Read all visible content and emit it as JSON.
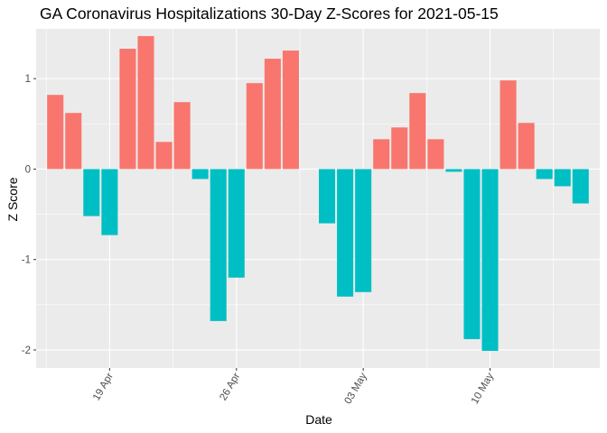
{
  "chart_data": {
    "type": "bar",
    "title": "GA Coronavirus Hospitalizations 30-Day Z-Scores for 2021-05-15",
    "xlabel": "Date",
    "ylabel": "Z Score",
    "ylim": [
      -2.2,
      1.55
    ],
    "yticks": [
      -2,
      -1,
      0,
      1
    ],
    "xticks": [
      {
        "date": "2021-04-19",
        "label": "19 Apr"
      },
      {
        "date": "2021-04-26",
        "label": "26 Apr"
      },
      {
        "date": "2021-05-03",
        "label": "03 May"
      },
      {
        "date": "2021-05-10",
        "label": "10 May"
      }
    ],
    "grid": true,
    "legend": "none",
    "colors": {
      "positive": "#F8766D",
      "negative": "#00BFC4",
      "panel": "#EBEBEB",
      "grid": "#FFFFFF"
    },
    "x": [
      "2021-04-16",
      "2021-04-17",
      "2021-04-18",
      "2021-04-19",
      "2021-04-20",
      "2021-04-21",
      "2021-04-22",
      "2021-04-23",
      "2021-04-24",
      "2021-04-25",
      "2021-04-26",
      "2021-04-27",
      "2021-04-28",
      "2021-04-29",
      "2021-04-30",
      "2021-05-01",
      "2021-05-02",
      "2021-05-03",
      "2021-05-04",
      "2021-05-05",
      "2021-05-06",
      "2021-05-07",
      "2021-05-08",
      "2021-05-09",
      "2021-05-10",
      "2021-05-11",
      "2021-05-12",
      "2021-05-13",
      "2021-05-14",
      "2021-05-15"
    ],
    "values": [
      0.82,
      0.62,
      -0.52,
      -0.73,
      1.33,
      1.47,
      0.3,
      0.74,
      -0.11,
      -1.68,
      -1.2,
      0.95,
      1.22,
      1.31,
      0,
      -0.6,
      -1.41,
      -1.36,
      0.33,
      0.46,
      0.84,
      0.33,
      -0.03,
      -1.88,
      -2.01,
      0.98,
      0.51,
      -0.11,
      -0.19,
      -0.38
    ]
  }
}
